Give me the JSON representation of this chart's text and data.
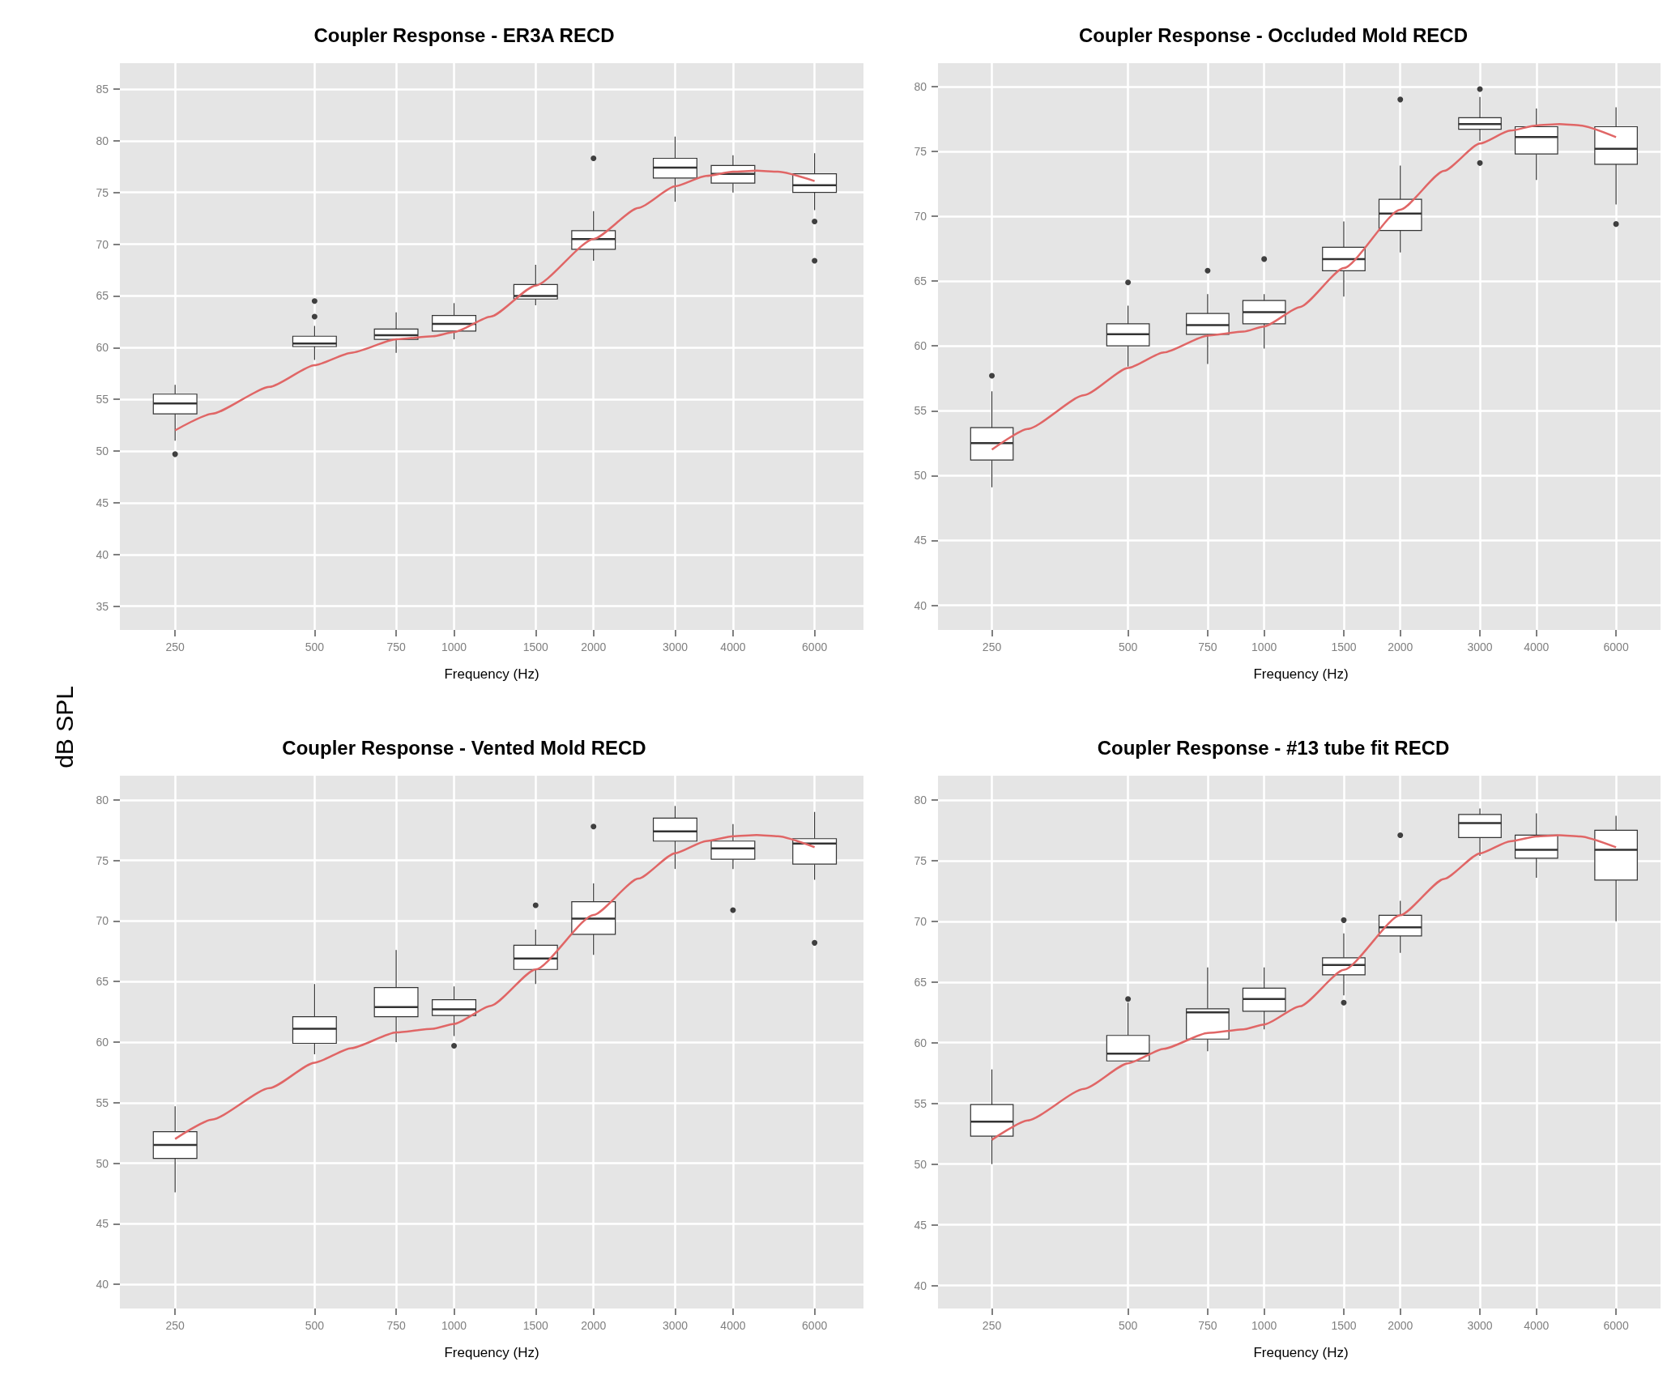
{
  "chart_data": [
    {
      "type": "box",
      "title": "Coupler Response - ER3A RECD",
      "xlabel": "Frequency (Hz)",
      "ylabel": "dB SPL",
      "log": "x",
      "grid": true,
      "xlim": [
        190,
        7650
      ],
      "xticks": [
        250,
        500,
        750,
        1000,
        1500,
        2000,
        3000,
        4000,
        6000
      ],
      "ylim": [
        32.7,
        87.5
      ],
      "yticks": [
        35,
        40,
        45,
        50,
        55,
        60,
        65,
        70,
        75,
        80,
        85
      ],
      "x": [
        250,
        500,
        750,
        1000,
        1500,
        2000,
        3000,
        4000,
        6000
      ],
      "boxes": [
        {
          "low": 51,
          "q1": 53.6,
          "median": 54.6,
          "q3": 55.5,
          "high": 56.4,
          "outliers": [
            49.7
          ]
        },
        {
          "low": 58.8,
          "q1": 60.1,
          "median": 60.4,
          "q3": 61.1,
          "high": 62.1,
          "outliers": [
            63,
            64.5
          ]
        },
        {
          "low": 59.5,
          "q1": 60.8,
          "median": 61.2,
          "q3": 61.8,
          "high": 63.4
        },
        {
          "low": 60.8,
          "q1": 61.6,
          "median": 62.3,
          "q3": 63.1,
          "high": 64.3
        },
        {
          "low": 64.1,
          "q1": 64.7,
          "median": 65,
          "q3": 66.1,
          "high": 68
        },
        {
          "low": 68.4,
          "q1": 69.5,
          "median": 70.5,
          "q3": 71.3,
          "high": 73.2,
          "outliers": [
            78.3
          ]
        },
        {
          "low": 74.1,
          "q1": 76.4,
          "median": 77.4,
          "q3": 78.3,
          "high": 80.4
        },
        {
          "low": 75,
          "q1": 75.9,
          "median": 76.8,
          "q3": 77.6,
          "high": 78.6
        },
        {
          "low": 73.3,
          "q1": 75,
          "median": 75.7,
          "q3": 76.8,
          "high": 78.8,
          "outliers": [
            72.2,
            68.4
          ]
        }
      ],
      "series": [
        {
          "type": "line",
          "color": "#e06666",
          "x": [
            250,
            300,
            400,
            500,
            600,
            750,
            900,
            1000,
            1200,
            1500,
            2000,
            2500,
            3000,
            3500,
            4000,
            4500,
            5000,
            6000
          ],
          "values": [
            52,
            53.6,
            56.2,
            58.3,
            59.5,
            60.8,
            61.1,
            61.5,
            63,
            66,
            70.5,
            73.5,
            75.6,
            76.6,
            77,
            77.1,
            77,
            76.1
          ]
        }
      ]
    },
    {
      "type": "box",
      "title": "Coupler Response - Occluded Mold RECD",
      "xlabel": "Frequency (Hz)",
      "log": "x",
      "grid": true,
      "xlim": [
        190,
        7650
      ],
      "xticks": [
        250,
        500,
        750,
        1000,
        1500,
        2000,
        3000,
        4000,
        6000
      ],
      "ylim": [
        38.1,
        81.8
      ],
      "yticks": [
        40,
        45,
        50,
        55,
        60,
        65,
        70,
        75,
        80
      ],
      "x": [
        250,
        500,
        750,
        1000,
        1500,
        2000,
        3000,
        4000,
        6000
      ],
      "boxes": [
        {
          "low": 49.1,
          "q1": 51.2,
          "median": 52.5,
          "q3": 53.7,
          "high": 56.5,
          "outliers": [
            57.7
          ]
        },
        {
          "low": 58.4,
          "q1": 60,
          "median": 60.9,
          "q3": 61.7,
          "high": 63.1,
          "outliers": [
            64.9
          ]
        },
        {
          "low": 58.6,
          "q1": 60.9,
          "median": 61.6,
          "q3": 62.5,
          "high": 64,
          "outliers": [
            65.8
          ]
        },
        {
          "low": 59.8,
          "q1": 61.7,
          "median": 62.6,
          "q3": 63.5,
          "high": 64,
          "outliers": [
            66.7
          ]
        },
        {
          "low": 63.8,
          "q1": 65.8,
          "median": 66.7,
          "q3": 67.6,
          "high": 69.6
        },
        {
          "low": 67.2,
          "q1": 68.9,
          "median": 70.2,
          "q3": 71.3,
          "high": 73.9,
          "outliers": [
            79
          ]
        },
        {
          "low": 75.8,
          "q1": 76.7,
          "median": 77.1,
          "q3": 77.6,
          "high": 79.2,
          "outliers": [
            79.8,
            74.1
          ]
        },
        {
          "low": 72.8,
          "q1": 74.8,
          "median": 76.1,
          "q3": 76.9,
          "high": 78.3
        },
        {
          "low": 70.9,
          "q1": 74,
          "median": 75.2,
          "q3": 76.9,
          "high": 78.4,
          "outliers": [
            69.4
          ]
        }
      ],
      "series": [
        {
          "type": "line",
          "color": "#e06666",
          "x": [
            250,
            300,
            400,
            500,
            600,
            750,
            900,
            1000,
            1200,
            1500,
            2000,
            2500,
            3000,
            3500,
            4000,
            4500,
            5000,
            6000
          ],
          "values": [
            52,
            53.6,
            56.2,
            58.3,
            59.5,
            60.8,
            61.1,
            61.5,
            63,
            66,
            70.5,
            73.5,
            75.6,
            76.6,
            77,
            77.1,
            77,
            76.1
          ]
        }
      ]
    },
    {
      "type": "box",
      "title": "Coupler Response - Vented Mold RECD",
      "xlabel": "Frequency (Hz)",
      "log": "x",
      "grid": true,
      "xlim": [
        190,
        7650
      ],
      "xticks": [
        250,
        500,
        750,
        1000,
        1500,
        2000,
        3000,
        4000,
        6000
      ],
      "ylim": [
        38,
        82
      ],
      "yticks": [
        40,
        45,
        50,
        55,
        60,
        65,
        70,
        75,
        80
      ],
      "x": [
        250,
        500,
        750,
        1000,
        1500,
        2000,
        3000,
        4000,
        6000
      ],
      "boxes": [
        {
          "low": 47.6,
          "q1": 50.4,
          "median": 51.5,
          "q3": 52.6,
          "high": 54.7
        },
        {
          "low": 59,
          "q1": 59.9,
          "median": 61.1,
          "q3": 62.1,
          "high": 64.8
        },
        {
          "low": 60,
          "q1": 62.1,
          "median": 62.9,
          "q3": 64.5,
          "high": 67.6
        },
        {
          "low": 60.5,
          "q1": 62.2,
          "median": 62.7,
          "q3": 63.5,
          "high": 64.6,
          "outliers": [
            59.7
          ]
        },
        {
          "low": 64.8,
          "q1": 66,
          "median": 66.9,
          "q3": 68,
          "high": 69.3,
          "outliers": [
            71.3
          ]
        },
        {
          "low": 67.2,
          "q1": 68.9,
          "median": 70.2,
          "q3": 71.6,
          "high": 73.1,
          "outliers": [
            77.8
          ]
        },
        {
          "low": 74.3,
          "q1": 76.6,
          "median": 77.4,
          "q3": 78.5,
          "high": 79.5
        },
        {
          "low": 74.3,
          "q1": 75.1,
          "median": 76,
          "q3": 76.6,
          "high": 78,
          "outliers": [
            70.9
          ]
        },
        {
          "low": 73.4,
          "q1": 74.7,
          "median": 76.4,
          "q3": 76.8,
          "high": 79,
          "outliers": [
            68.2
          ]
        }
      ],
      "series": [
        {
          "type": "line",
          "color": "#e06666",
          "x": [
            250,
            300,
            400,
            500,
            600,
            750,
            900,
            1000,
            1200,
            1500,
            2000,
            2500,
            3000,
            3500,
            4000,
            4500,
            5000,
            6000
          ],
          "values": [
            52,
            53.6,
            56.2,
            58.3,
            59.5,
            60.8,
            61.1,
            61.5,
            63,
            66,
            70.5,
            73.5,
            75.6,
            76.6,
            77,
            77.1,
            77,
            76.1
          ]
        }
      ]
    },
    {
      "type": "box",
      "title": "Coupler Response - #13 tube fit RECD",
      "xlabel": "Frequency (Hz)",
      "log": "x",
      "grid": true,
      "xlim": [
        190,
        7650
      ],
      "xticks": [
        250,
        500,
        750,
        1000,
        1500,
        2000,
        3000,
        4000,
        6000
      ],
      "ylim": [
        38.1,
        82
      ],
      "yticks": [
        40,
        45,
        50,
        55,
        60,
        65,
        70,
        75,
        80
      ],
      "x": [
        250,
        500,
        750,
        1000,
        1500,
        2000,
        3000,
        4000,
        6000
      ],
      "boxes": [
        {
          "low": 50,
          "q1": 52.3,
          "median": 53.5,
          "q3": 54.9,
          "high": 57.8
        },
        {
          "low": 58.5,
          "q1": 58.5,
          "median": 59.1,
          "q3": 60.6,
          "high": 63.3,
          "outliers": [
            63.6
          ]
        },
        {
          "low": 59.3,
          "q1": 60.3,
          "median": 62.5,
          "q3": 62.8,
          "high": 66.2
        },
        {
          "low": 61.1,
          "q1": 62.6,
          "median": 63.6,
          "q3": 64.5,
          "high": 66.2
        },
        {
          "low": 63.9,
          "q1": 65.6,
          "median": 66.4,
          "q3": 67,
          "high": 69,
          "outliers": [
            70.1,
            63.3
          ]
        },
        {
          "low": 67.4,
          "q1": 68.8,
          "median": 69.5,
          "q3": 70.5,
          "high": 71.7,
          "outliers": [
            77.1
          ]
        },
        {
          "low": 75.4,
          "q1": 76.9,
          "median": 78.1,
          "q3": 78.8,
          "high": 79.3
        },
        {
          "low": 73.6,
          "q1": 75.2,
          "median": 75.9,
          "q3": 77.1,
          "high": 78.9
        },
        {
          "low": 70,
          "q1": 73.4,
          "median": 75.9,
          "q3": 77.5,
          "high": 78.7
        }
      ],
      "series": [
        {
          "type": "line",
          "color": "#e06666",
          "x": [
            250,
            300,
            400,
            500,
            600,
            750,
            900,
            1000,
            1200,
            1500,
            2000,
            2500,
            3000,
            3500,
            4000,
            4500,
            5000,
            6000
          ],
          "values": [
            52,
            53.6,
            56.2,
            58.3,
            59.5,
            60.8,
            61.1,
            61.5,
            63,
            66,
            70.5,
            73.5,
            75.6,
            76.6,
            77,
            77.1,
            77,
            76.1
          ]
        }
      ]
    }
  ]
}
